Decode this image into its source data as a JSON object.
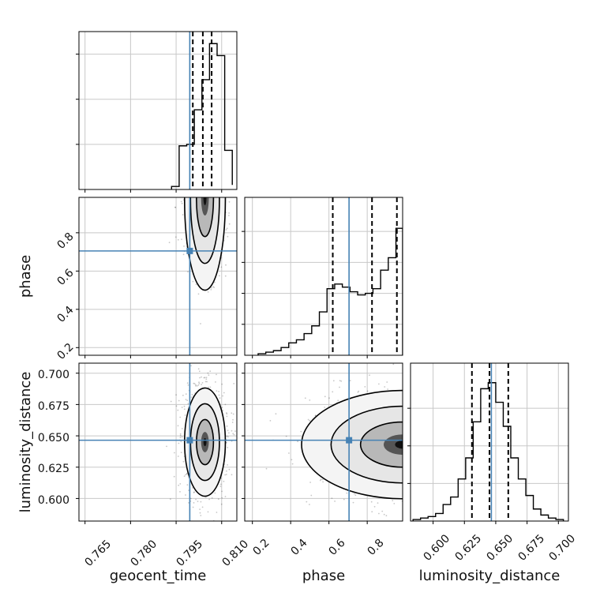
{
  "chart_data": {
    "type": "corner",
    "parameters": [
      "geocent_time",
      "phase",
      "luminosity_distance"
    ],
    "truths": {
      "geocent_time": 0.7995,
      "phase": 0.705,
      "luminosity_distance": 0.6465
    },
    "colors": {
      "truth": "#4682b4",
      "hist": "#000000",
      "grid": "#c8c8c8",
      "quantile": "#000000"
    },
    "grid": true,
    "panels": {
      "hist_geocent_time": {
        "xlim": [
          0.763,
          0.815
        ],
        "ylim": [
          0,
          1.05
        ],
        "bins": [
          0.7935,
          0.796,
          0.7985,
          0.801,
          0.8035,
          0.806,
          0.8085,
          0.811,
          0.8135
        ],
        "counts": [
          0.02,
          0.29,
          0.3,
          0.53,
          0.73,
          0.97,
          0.89,
          0.26,
          0.03
        ],
        "quantiles": [
          0.8005,
          0.8038,
          0.8067
        ]
      },
      "hist_phase": {
        "xlim": [
          0.16,
          0.985
        ],
        "ylim": [
          0,
          1.02
        ],
        "bins": [
          0.23,
          0.27,
          0.31,
          0.35,
          0.39,
          0.43,
          0.47,
          0.51,
          0.55,
          0.59,
          0.63,
          0.67,
          0.71,
          0.75,
          0.79,
          0.83,
          0.87,
          0.91,
          0.95,
          0.985
        ],
        "counts": [
          0.01,
          0.02,
          0.03,
          0.05,
          0.08,
          0.1,
          0.14,
          0.19,
          0.28,
          0.43,
          0.46,
          0.44,
          0.41,
          0.39,
          0.4,
          0.43,
          0.55,
          0.63,
          0.82
        ],
        "quantiles": [
          0.62,
          0.825,
          0.955
        ]
      },
      "hist_luminosity_distance": {
        "xlim": [
          0.582,
          0.708
        ],
        "ylim": [
          0,
          1.05
        ],
        "bins": [
          0.584,
          0.59,
          0.596,
          0.602,
          0.608,
          0.614,
          0.62,
          0.626,
          0.632,
          0.638,
          0.644,
          0.65,
          0.656,
          0.662,
          0.668,
          0.674,
          0.68,
          0.686,
          0.692,
          0.698,
          0.704
        ],
        "counts": [
          0.01,
          0.02,
          0.03,
          0.05,
          0.11,
          0.16,
          0.28,
          0.42,
          0.66,
          0.88,
          0.92,
          0.79,
          0.63,
          0.42,
          0.28,
          0.17,
          0.08,
          0.04,
          0.02,
          0.01
        ],
        "quantiles": [
          0.631,
          0.645,
          0.66
        ]
      },
      "scatter_geocent_time_phase": {
        "xlim": [
          0.763,
          0.815
        ],
        "ylim": [
          0.16,
          0.985
        ],
        "center": [
          0.8045,
          0.98
        ],
        "spread": [
          0.0028,
          0.2
        ]
      },
      "scatter_geocent_time_luminosity_distance": {
        "xlim": [
          0.763,
          0.815
        ],
        "ylim": [
          0.582,
          0.708
        ],
        "center": [
          0.8045,
          0.645
        ],
        "spread": [
          0.0028,
          0.018
        ]
      },
      "scatter_phase_luminosity_distance": {
        "xlim": [
          0.16,
          0.985
        ],
        "ylim": [
          0.582,
          0.708
        ],
        "center": [
          0.985,
          0.643
        ],
        "spread": [
          0.22,
          0.018
        ]
      }
    },
    "ticks": {
      "geocent_time_x": [
        "0.765",
        "0.780",
        "0.795",
        "0.810"
      ],
      "phase_x": [
        "0.2",
        "0.4",
        "0.6",
        "0.8"
      ],
      "luminosity_distance_x": [
        "0.600",
        "0.625",
        "0.650",
        "0.675",
        "0.700"
      ],
      "phase_y": [
        "0.2",
        "0.4",
        "0.6",
        "0.8"
      ],
      "luminosity_distance_y": [
        "0.600",
        "0.625",
        "0.650",
        "0.675",
        "0.700"
      ]
    },
    "xlabels": [
      "geocent_time",
      "phase",
      "luminosity_distance"
    ],
    "ylabels": [
      "phase",
      "luminosity_distance"
    ]
  }
}
